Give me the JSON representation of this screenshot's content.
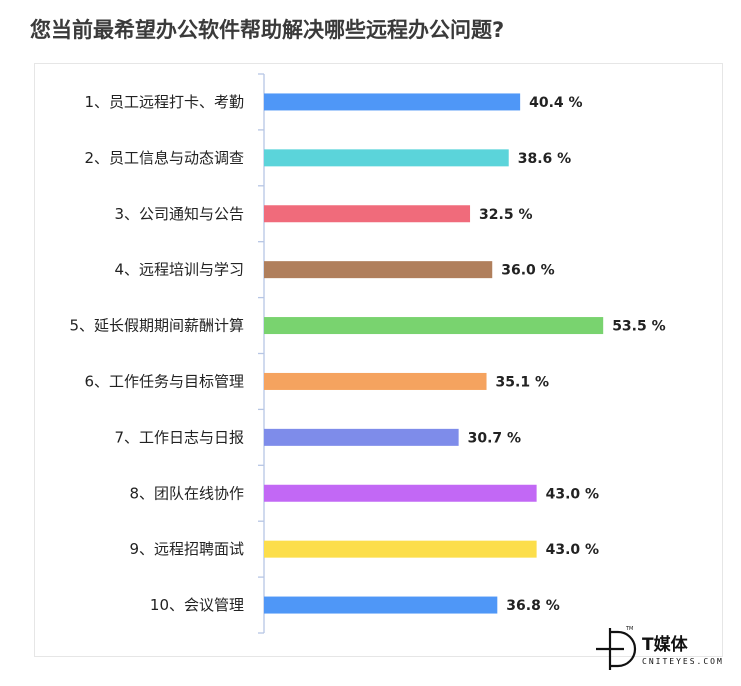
{
  "title": "您当前最希望办公软件帮助解决哪些远程办公问题?",
  "chart_data": {
    "type": "bar",
    "orientation": "horizontal",
    "title": "您当前最希望办公软件帮助解决哪些远程办公问题?",
    "unit": "%",
    "xlim": [
      0,
      60
    ],
    "grid": false,
    "categories": [
      "1、员工远程打卡、考勤",
      "2、员工信息与动态调查",
      "3、公司通知与公告",
      "4、远程培训与学习",
      "5、延长假期期间薪酬计算",
      "6、工作任务与目标管理",
      "7、工作日志与日报",
      "8、团队在线协作",
      "9、远程招聘面试",
      "10、会议管理"
    ],
    "values": [
      40.4,
      38.6,
      32.5,
      36.0,
      53.5,
      35.1,
      30.7,
      43.0,
      43.0,
      36.8
    ],
    "value_labels": [
      "40.4 %",
      "38.6 %",
      "32.5 %",
      "36.0 %",
      "53.5 %",
      "35.1 %",
      "30.7 %",
      "43.0 %",
      "43.0 %",
      "36.8 %"
    ],
    "colors": [
      "#4f97f7",
      "#5bd4da",
      "#f06b7b",
      "#b07f5c",
      "#79d36f",
      "#f5a35f",
      "#7e8cea",
      "#c268f5",
      "#fcde4b",
      "#4f97f7"
    ],
    "axis_color": "#b7c6e4"
  },
  "logo": {
    "name": "T媒体",
    "subtitle": "CNITEYES.COM",
    "trademark": "TM"
  }
}
